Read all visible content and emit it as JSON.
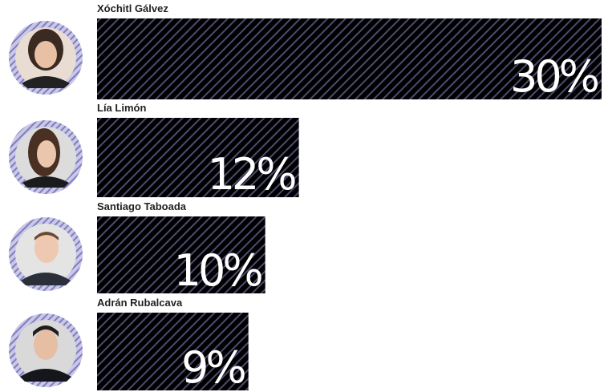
{
  "chart_data": {
    "type": "bar",
    "orientation": "horizontal",
    "categories": [
      "Xóchitl Gálvez",
      "Lía Limón",
      "Santiago Taboada",
      "Adrán Rubalcava"
    ],
    "values": [
      30,
      12,
      10,
      9
    ],
    "value_labels": [
      "30%",
      "12%",
      "10%",
      "9%"
    ],
    "color": "#3b3a8f"
  }
}
